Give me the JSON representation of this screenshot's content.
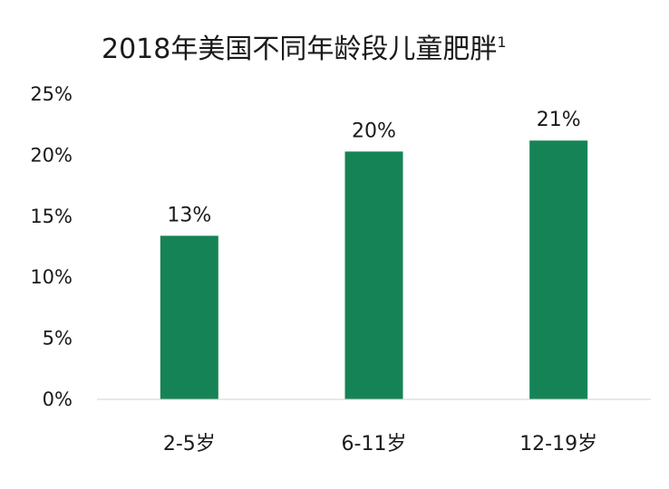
{
  "chart_data": {
    "type": "bar",
    "title": "2018年美国不同年龄段儿童肥胖",
    "title_superscript": "1",
    "categories": [
      "2-5岁",
      "6-11岁",
      "12-19岁"
    ],
    "values": [
      13.4,
      20.3,
      21.2
    ],
    "data_labels": [
      "13%",
      "20%",
      "21%"
    ],
    "ylim": [
      0,
      25
    ],
    "yticks": [
      0,
      5,
      10,
      15,
      20,
      25
    ],
    "ytick_labels": [
      "0%",
      "5%",
      "10%",
      "15%",
      "20%",
      "25%"
    ],
    "xlabel": "",
    "ylabel": "",
    "grid": false,
    "legend": "none",
    "colors": {
      "bar": "#168357",
      "axis": "#d0d0d0"
    }
  }
}
